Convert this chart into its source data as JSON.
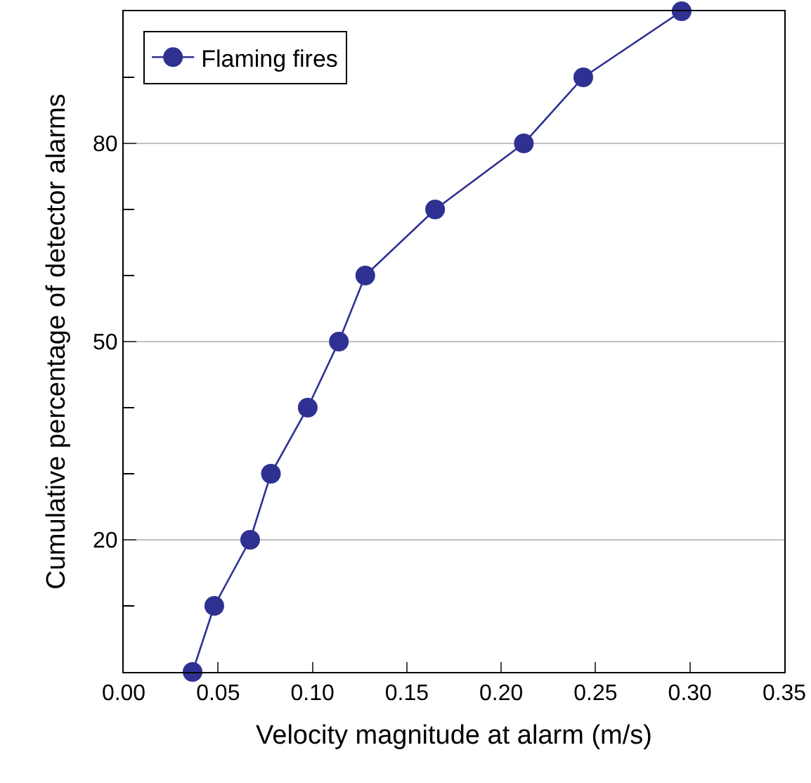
{
  "chart_data": {
    "type": "line",
    "xlabel": "Velocity magnitude at alarm (m/s)",
    "ylabel": "Cumulative percentage of detector alarms",
    "x": [
      0.0365,
      0.048,
      0.067,
      0.078,
      0.0975,
      0.114,
      0.128,
      0.165,
      0.212,
      0.2435,
      0.2956
    ],
    "series": [
      {
        "name": "Flaming fires",
        "color": "#2e3192",
        "values": [
          0,
          10,
          20,
          30,
          40,
          50,
          60,
          70,
          80,
          90,
          100
        ]
      }
    ],
    "xlim": [
      0,
      0.35
    ],
    "xticks": [
      {
        "value": 0,
        "label": "0.00"
      },
      0.05,
      {
        "value": 0.1,
        "label": "0.10"
      },
      0.15,
      {
        "value": 0.2,
        "label": "0.20"
      },
      0.25,
      {
        "value": 0.3,
        "label": "0.30"
      },
      0.35
    ],
    "ylim": [
      0,
      100
    ],
    "yticks": [
      {
        "value": 10,
        "label": null
      },
      20,
      {
        "value": 30,
        "label": null
      },
      {
        "value": 40,
        "label": null
      },
      50,
      {
        "value": 60,
        "label": null
      },
      {
        "value": 70,
        "label": null
      },
      80,
      {
        "value": 90,
        "label": null
      }
    ],
    "grid": "y",
    "legend": "top left",
    "marker": "circle",
    "line_style": "solid"
  }
}
